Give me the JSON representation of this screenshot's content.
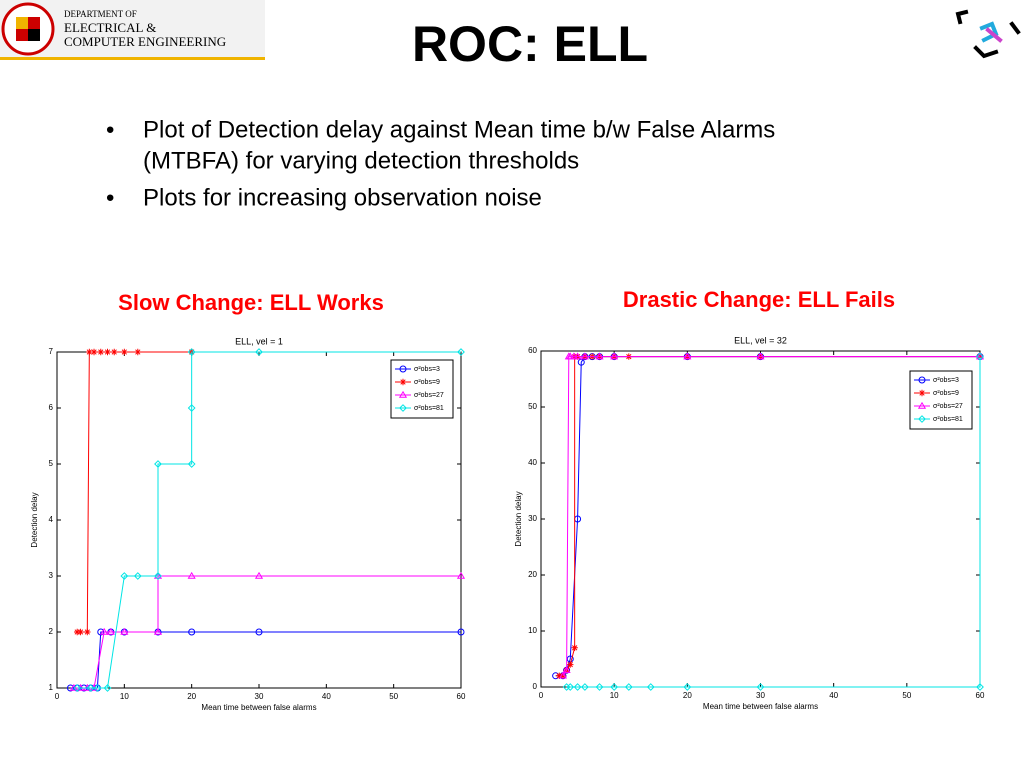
{
  "slide": {
    "logo_lines": [
      "DEPARTMENT OF",
      "ELECTRICAL &",
      "COMPUTER ENGINEERING"
    ],
    "title": "ROC: ELL",
    "bullets": [
      "Plot of Detection delay against Mean time b/w False Alarms",
      "(MTBFA) for varying detection thresholds",
      "Plots for increasing observation noise"
    ],
    "captions": [
      "Slow Change: ELL Works",
      "Drastic Change: ELL Fails"
    ]
  },
  "chart_data": [
    {
      "type": "line",
      "title": "ELL, vel = 1",
      "x_label": "Mean time between false alarms",
      "y_label": "Detection delay",
      "xlim": [
        0,
        60
      ],
      "xticks": [
        0,
        10,
        20,
        30,
        40,
        50,
        60
      ],
      "ylim": [
        1,
        7
      ],
      "yticks": [
        1,
        2,
        3,
        4,
        5,
        6,
        7
      ],
      "legend": "upper right",
      "series": [
        {
          "name": "σ²obs=3",
          "color": "#0000ff",
          "marker": "circle",
          "x": [
            2,
            3,
            4,
            5,
            6,
            6.5,
            8,
            10,
            15,
            20,
            30,
            60
          ],
          "values": [
            1,
            1,
            1,
            1,
            1,
            2,
            2,
            2,
            2,
            2,
            2,
            2
          ]
        },
        {
          "name": "σ²obs=9",
          "color": "#ff0000",
          "marker": "star",
          "x": [
            3,
            3.5,
            4.5,
            4.8,
            5.5,
            6.5,
            7.5,
            8.5,
            10,
            12,
            20
          ],
          "values": [
            2,
            2,
            2,
            7,
            7,
            7,
            7,
            7,
            7,
            7,
            7
          ]
        },
        {
          "name": "σ²obs=27",
          "color": "#ff00ff",
          "marker": "triangle",
          "x": [
            2.5,
            3.5,
            4.5,
            5.5,
            7,
            8,
            10,
            15,
            15,
            20,
            30,
            60
          ],
          "values": [
            1,
            1,
            1,
            1,
            2,
            2,
            2,
            2,
            3,
            3,
            3,
            3
          ]
        },
        {
          "name": "σ²obs=81",
          "color": "#00e5e5",
          "marker": "diamond",
          "x": [
            3,
            5,
            6,
            7.5,
            10,
            12,
            15,
            15,
            20,
            20,
            20,
            30,
            60
          ],
          "values": [
            1,
            1,
            1,
            1,
            3,
            3,
            3,
            5,
            5,
            6,
            7,
            7,
            7
          ]
        }
      ]
    },
    {
      "type": "line",
      "title": "ELL, vel = 32",
      "x_label": "Mean time between false alarms",
      "y_label": "Detection delay",
      "xlim": [
        0,
        60
      ],
      "xticks": [
        0,
        10,
        20,
        30,
        40,
        50,
        60
      ],
      "ylim": [
        0,
        60
      ],
      "yticks": [
        0,
        10,
        20,
        30,
        40,
        50,
        60
      ],
      "legend": "upper right",
      "series": [
        {
          "name": "σ²obs=3",
          "color": "#0000ff",
          "marker": "circle",
          "x": [
            2,
            3,
            3.5,
            4,
            5,
            5.5,
            6,
            7,
            8,
            10,
            20,
            30,
            60
          ],
          "values": [
            2,
            2,
            3,
            5,
            30,
            58,
            59,
            59,
            59,
            59,
            59,
            59,
            59
          ]
        },
        {
          "name": "σ²obs=9",
          "color": "#ff0000",
          "marker": "star",
          "x": [
            2.5,
            3,
            3.5,
            4,
            4.6,
            4.6,
            5,
            6,
            7,
            8,
            10,
            12,
            20,
            30,
            60
          ],
          "values": [
            2,
            2,
            3,
            4,
            7,
            59,
            59,
            59,
            59,
            59,
            59,
            59,
            59,
            59,
            59
          ]
        },
        {
          "name": "σ²obs=27",
          "color": "#ff00ff",
          "marker": "triangle",
          "x": [
            3,
            3.5,
            3.8,
            4,
            4.5,
            5,
            6,
            8,
            10,
            20,
            30,
            60
          ],
          "values": [
            2,
            3,
            59,
            59,
            59,
            59,
            59,
            59,
            59,
            59,
            59,
            59
          ]
        },
        {
          "name": "σ²obs=81",
          "color": "#00e5e5",
          "marker": "diamond",
          "x": [
            3.5,
            4,
            5,
            6,
            8,
            10,
            12,
            15,
            20,
            30,
            60,
            60
          ],
          "values": [
            0,
            0,
            0,
            0,
            0,
            0,
            0,
            0,
            0,
            0,
            0,
            59
          ]
        }
      ]
    }
  ]
}
